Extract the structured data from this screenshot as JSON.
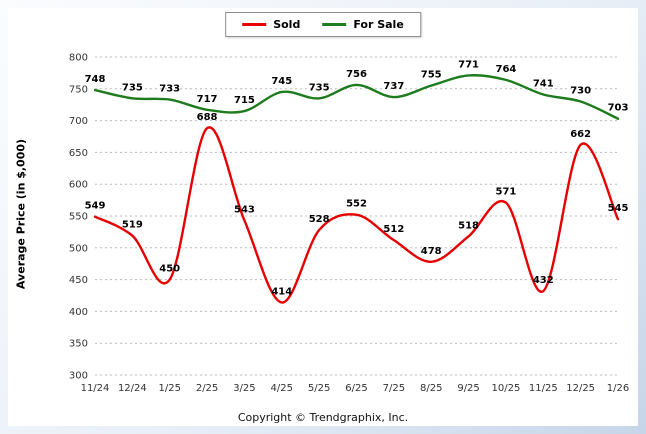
{
  "footer": {
    "copyright": "Copyright © Trendgraphix, Inc."
  },
  "chart_data": {
    "type": "line",
    "title": "",
    "xlabel": "",
    "ylabel": "Average Price (in $,000)",
    "ylim": [
      300,
      800
    ],
    "ytick_step": 50,
    "grid": true,
    "legend_position": "top-center",
    "categories": [
      "11/24",
      "12/24",
      "1/25",
      "2/25",
      "3/25",
      "4/25",
      "5/25",
      "6/25",
      "7/25",
      "8/25",
      "9/25",
      "10/25",
      "11/25",
      "12/25",
      "1/26"
    ],
    "series": [
      {
        "name": "Sold",
        "color": "#e60000",
        "values": [
          549,
          519,
          450,
          688,
          543,
          414,
          528,
          552,
          512,
          478,
          518,
          571,
          432,
          662,
          545
        ]
      },
      {
        "name": "For Sale",
        "color": "#1e7b1e",
        "values": [
          748,
          735,
          733,
          717,
          715,
          745,
          735,
          756,
          737,
          755,
          771,
          764,
          741,
          730,
          703
        ]
      }
    ]
  }
}
